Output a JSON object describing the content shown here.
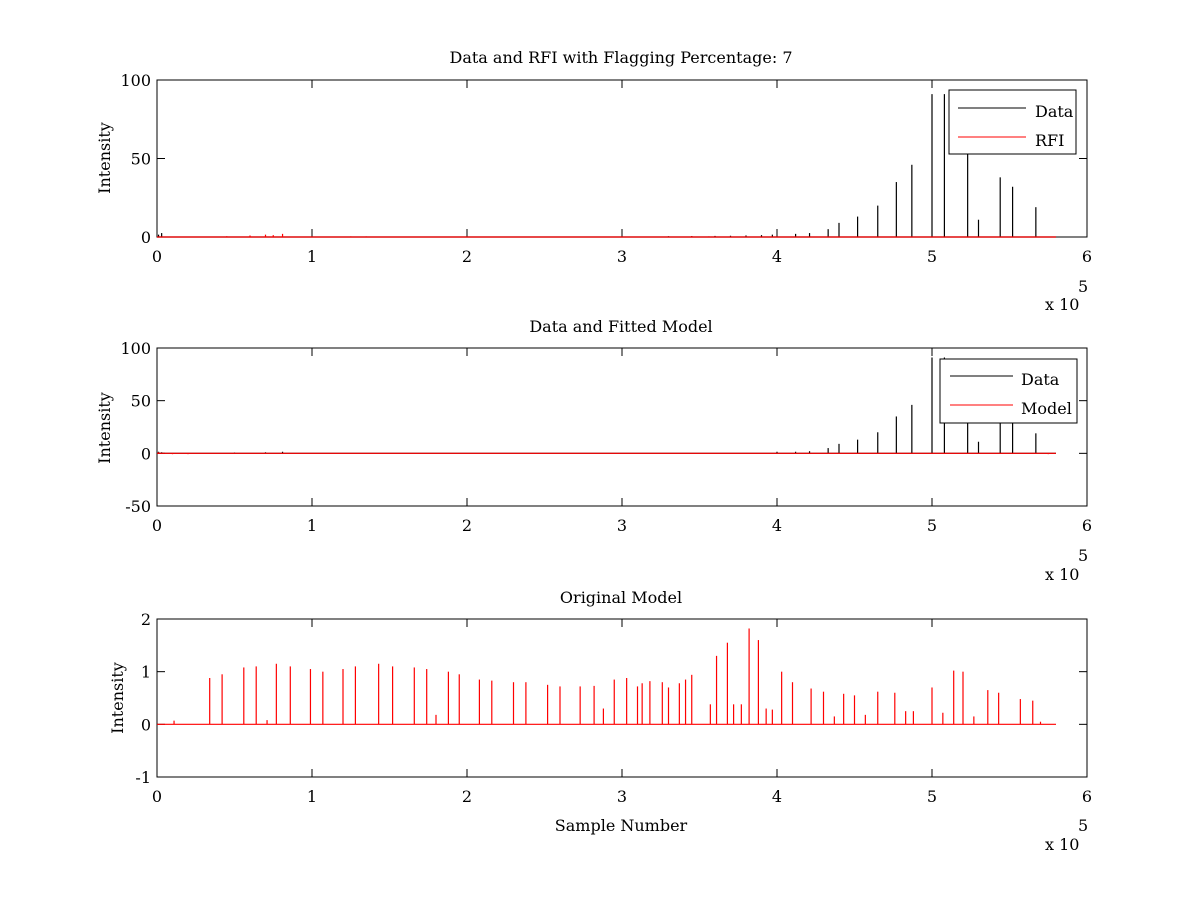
{
  "chart_data": [
    {
      "type": "line",
      "title": "Data and RFI with Flagging Percentage: 7",
      "xlabel": "",
      "ylabel": "Intensity",
      "xlim": [
        0,
        600000
      ],
      "ylim": [
        0,
        100
      ],
      "xticks": [
        "0",
        "1",
        "2",
        "3",
        "4",
        "5",
        "6"
      ],
      "xtick_values": [
        0,
        100000,
        200000,
        300000,
        400000,
        500000,
        600000
      ],
      "yticks": [
        "0",
        "50",
        "100"
      ],
      "ytick_values": [
        0,
        50,
        100
      ],
      "x_exponent_label": "x 10",
      "x_exponent": "5",
      "legend_position": "top-right",
      "series": [
        {
          "name": "Data",
          "color": "#000000",
          "baseline": 0,
          "spikes": [
            [
              1000,
              1.5
            ],
            [
              3000,
              2.5
            ],
            [
              330000,
              0.5
            ],
            [
              345000,
              0.6
            ],
            [
              360000,
              0.7
            ],
            [
              370000,
              0.8
            ],
            [
              380000,
              1.0
            ],
            [
              390000,
              1.2
            ],
            [
              397000,
              1.5
            ],
            [
              412000,
              2.0
            ],
            [
              421000,
              2.5
            ],
            [
              433000,
              5.0
            ],
            [
              440000,
              9.0
            ],
            [
              452000,
              13.0
            ],
            [
              465000,
              20.0
            ],
            [
              477000,
              35.0
            ],
            [
              487000,
              46.0
            ],
            [
              500000,
              91.0
            ],
            [
              508000,
              91.0
            ],
            [
              523000,
              56.0
            ],
            [
              530000,
              11.0
            ],
            [
              544000,
              38.0
            ],
            [
              552000,
              32.0
            ],
            [
              567000,
              19.0
            ]
          ],
          "end_x": 580000
        },
        {
          "name": "RFI",
          "color": "#ff0000",
          "baseline": 0,
          "spikes": [
            [
              45000,
              0.5
            ],
            [
              60000,
              1.0
            ],
            [
              70000,
              1.5
            ],
            [
              75000,
              1.2
            ],
            [
              81000,
              2.0
            ],
            [
              125000,
              0.4
            ],
            [
              135000,
              0.4
            ],
            [
              345000,
              0.5
            ],
            [
              356000,
              0.4
            ]
          ],
          "end_x": 580000
        }
      ]
    },
    {
      "type": "line",
      "title": "Data and Fitted Model",
      "xlabel": "",
      "ylabel": "Intensity",
      "xlim": [
        0,
        600000
      ],
      "ylim": [
        -50,
        100
      ],
      "xticks": [
        "0",
        "1",
        "2",
        "3",
        "4",
        "5",
        "6"
      ],
      "xtick_values": [
        0,
        100000,
        200000,
        300000,
        400000,
        500000,
        600000
      ],
      "yticks": [
        "-50",
        "0",
        "50",
        "100"
      ],
      "ytick_values": [
        -50,
        0,
        50,
        100
      ],
      "x_exponent_label": "x 10",
      "x_exponent": "5",
      "legend_position": "top-right",
      "series": [
        {
          "name": "Data",
          "color": "#000000",
          "baseline": 0,
          "spikes": [
            [
              1000,
              1.5
            ],
            [
              3000,
              1.0
            ],
            [
              50000,
              0.8
            ],
            [
              70000,
              1.0
            ],
            [
              81000,
              1.5
            ],
            [
              400000,
              1.5
            ],
            [
              412000,
              1.5
            ],
            [
              421000,
              2.0
            ],
            [
              433000,
              5.0
            ],
            [
              440000,
              9.0
            ],
            [
              452000,
              13.0
            ],
            [
              465000,
              20.0
            ],
            [
              477000,
              35.0
            ],
            [
              487000,
              46.0
            ],
            [
              500000,
              91.0
            ],
            [
              508000,
              91.0
            ],
            [
              523000,
              56.0
            ],
            [
              530000,
              11.0
            ],
            [
              544000,
              38.0
            ],
            [
              552000,
              32.0
            ],
            [
              567000,
              19.0
            ]
          ],
          "end_x": 580000
        },
        {
          "name": "Model",
          "color": "#ff0000",
          "baseline": 0,
          "spikes": [
            [
              1000,
              1.0
            ],
            [
              10000,
              -0.8
            ],
            [
              20000,
              -0.8
            ],
            [
              575000,
              -0.8
            ]
          ],
          "end_x": 580000
        }
      ]
    },
    {
      "type": "line",
      "title": "Original Model",
      "xlabel": "Sample Number",
      "ylabel": "Intensity",
      "xlim": [
        0,
        600000
      ],
      "ylim": [
        -1,
        2
      ],
      "xticks": [
        "0",
        "1",
        "2",
        "3",
        "4",
        "5",
        "6"
      ],
      "xtick_values": [
        0,
        100000,
        200000,
        300000,
        400000,
        500000,
        600000
      ],
      "yticks": [
        "-1",
        "0",
        "1",
        "2"
      ],
      "ytick_values": [
        -1,
        0,
        1,
        2
      ],
      "x_exponent_label": "x 10",
      "x_exponent": "5",
      "legend_position": "none",
      "series": [
        {
          "name": "",
          "color": "#ff0000",
          "baseline": 0,
          "spikes": [
            [
              11000,
              0.07
            ],
            [
              34000,
              0.88
            ],
            [
              42000,
              0.95
            ],
            [
              56000,
              1.08
            ],
            [
              64000,
              1.1
            ],
            [
              71000,
              0.08
            ],
            [
              77000,
              1.15
            ],
            [
              86000,
              1.1
            ],
            [
              99000,
              1.05
            ],
            [
              107000,
              1.0
            ],
            [
              120000,
              1.05
            ],
            [
              128000,
              1.1
            ],
            [
              143000,
              1.15
            ],
            [
              152000,
              1.1
            ],
            [
              166000,
              1.08
            ],
            [
              174000,
              1.05
            ],
            [
              180000,
              0.18
            ],
            [
              188000,
              1.0
            ],
            [
              195000,
              0.95
            ],
            [
              208000,
              0.85
            ],
            [
              216000,
              0.83
            ],
            [
              230000,
              0.8
            ],
            [
              238000,
              0.8
            ],
            [
              252000,
              0.75
            ],
            [
              260000,
              0.72
            ],
            [
              273000,
              0.72
            ],
            [
              282000,
              0.73
            ],
            [
              288000,
              0.3
            ],
            [
              295000,
              0.85
            ],
            [
              303000,
              0.88
            ],
            [
              310000,
              0.72
            ],
            [
              313000,
              0.78
            ],
            [
              318000,
              0.82
            ],
            [
              326000,
              0.8
            ],
            [
              330000,
              0.7
            ],
            [
              337000,
              0.78
            ],
            [
              341000,
              0.85
            ],
            [
              345000,
              0.94
            ],
            [
              357000,
              0.38
            ],
            [
              361000,
              1.3
            ],
            [
              368000,
              1.55
            ],
            [
              372000,
              0.38
            ],
            [
              377000,
              0.38
            ],
            [
              382000,
              1.82
            ],
            [
              388000,
              1.6
            ],
            [
              393000,
              0.3
            ],
            [
              397000,
              0.28
            ],
            [
              403000,
              1.0
            ],
            [
              410000,
              0.8
            ],
            [
              422000,
              0.68
            ],
            [
              430000,
              0.62
            ],
            [
              437000,
              0.15
            ],
            [
              443000,
              0.58
            ],
            [
              450000,
              0.55
            ],
            [
              457000,
              0.18
            ],
            [
              465000,
              0.62
            ],
            [
              476000,
              0.6
            ],
            [
              483000,
              0.25
            ],
            [
              488000,
              0.25
            ],
            [
              500000,
              0.7
            ],
            [
              507000,
              0.22
            ],
            [
              514000,
              1.02
            ],
            [
              520000,
              1.0
            ],
            [
              527000,
              0.15
            ],
            [
              536000,
              0.65
            ],
            [
              543000,
              0.6
            ],
            [
              557000,
              0.48
            ],
            [
              565000,
              0.45
            ],
            [
              570000,
              0.05
            ]
          ],
          "end_x": 580000
        }
      ]
    }
  ]
}
